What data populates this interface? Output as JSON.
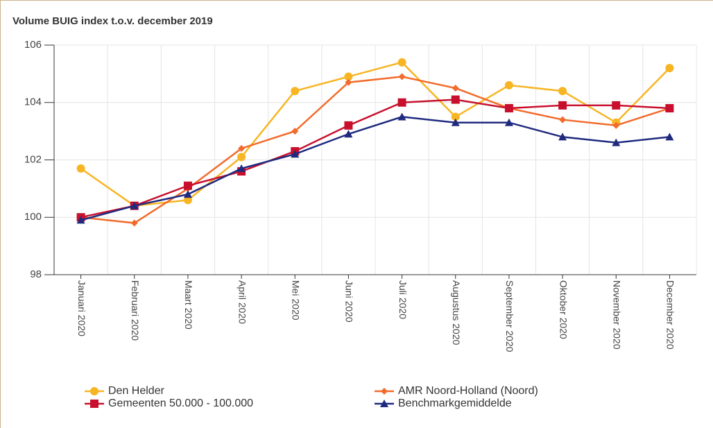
{
  "chart_data": {
    "type": "line",
    "title": "Volume BUIG index t.o.v. december 2019",
    "categories": [
      "Januari 2020",
      "Februari 2020",
      "Maart 2020",
      "April 2020",
      "Mei 2020",
      "Juni 2020",
      "Juli 2020",
      "Augustus 2020",
      "September 2020",
      "Oktober 2020",
      "November 2020",
      "December 2020"
    ],
    "series": [
      {
        "name": "Den Helder",
        "color": "#f7b523",
        "marker": "circle",
        "values": [
          101.7,
          100.4,
          100.6,
          102.1,
          104.4,
          104.9,
          105.4,
          103.5,
          104.6,
          104.4,
          103.3,
          105.2
        ]
      },
      {
        "name": "AMR Noord-Holland (Noord)",
        "color": "#f26b2c",
        "marker": "diamond",
        "values": [
          100.0,
          99.8,
          101.0,
          102.4,
          103.0,
          104.7,
          104.9,
          104.5,
          103.8,
          103.4,
          103.2,
          103.8
        ]
      },
      {
        "name": "Gemeenten 50.000 - 100.000",
        "color": "#c8102e",
        "marker": "square",
        "values": [
          100.0,
          100.4,
          101.1,
          101.6,
          102.3,
          103.2,
          104.0,
          104.1,
          103.8,
          103.9,
          103.9,
          103.8
        ]
      },
      {
        "name": "Benchmarkgemiddelde",
        "color": "#1f2a7f",
        "marker": "triangle",
        "values": [
          99.9,
          100.4,
          100.8,
          101.7,
          102.2,
          102.9,
          103.5,
          103.3,
          103.3,
          102.8,
          102.6,
          102.8
        ]
      }
    ],
    "ylim": [
      98,
      106
    ],
    "yticks": [
      98,
      100,
      102,
      104,
      106
    ],
    "grid": true,
    "legend": "bottom"
  }
}
